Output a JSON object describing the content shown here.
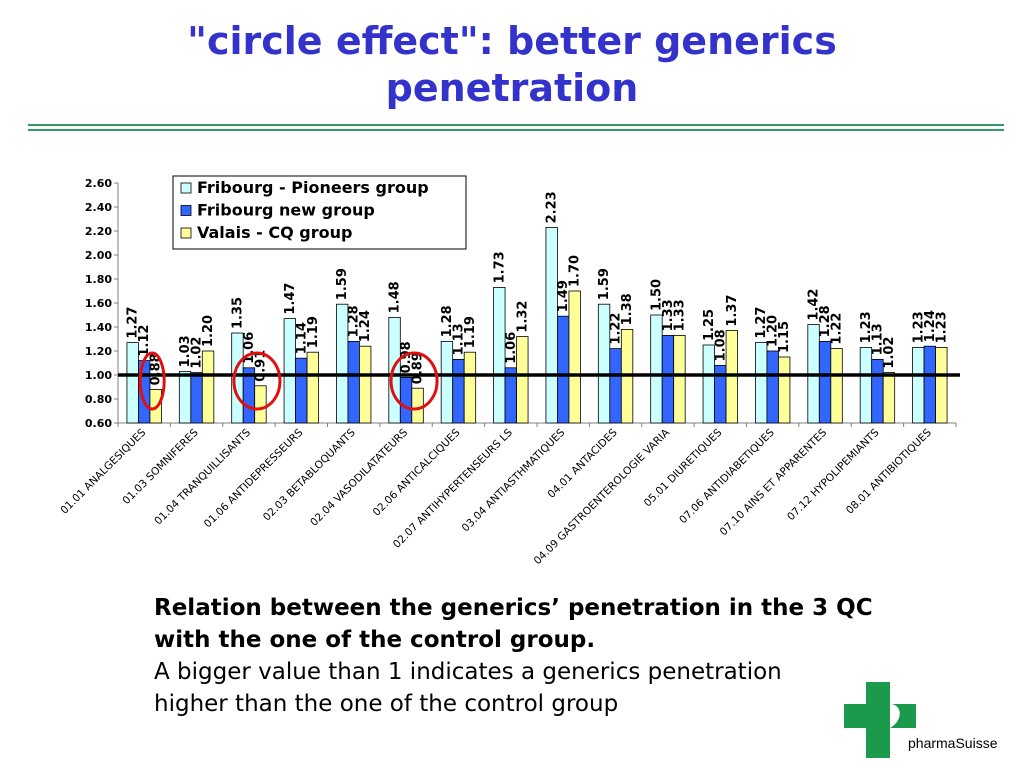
{
  "slide": {
    "title_line1": "\"circle effect\": better generics",
    "title_line2": "penetration",
    "caption_bold": "Relation between the generics’ penetration in the 3 QC with the one of the control group.",
    "caption_normal": "A bigger value than 1 indicates a generics penetration higher than the one of the control group",
    "logo_text": "pharmaSuisse"
  },
  "colors": {
    "title": "#3333cc",
    "rule": "#339966",
    "series": [
      "#ccffff",
      "#3366ff",
      "#ffff99"
    ],
    "circles": "#e01010",
    "logo": "#1a9a4a"
  },
  "chart_data": {
    "type": "bar",
    "categories": [
      "01.01 ANALGESIQUES",
      "01.03 SOMNIFERES",
      "01.04 TRANQUILLISANTS",
      "01.06 ANTIDEPRESSEURS",
      "02.03 BETABLOQUANTS",
      "02.04 VASODILATATEURS",
      "02.06 ANTICALCIQUES",
      "02.07 ANTIHYPERTENSEURS LS",
      "03.04 ANTIASTHMATIQUES",
      "04.01 ANTACIDES",
      "04.09 GASTROENTEROLOGIE VARIA",
      "05.01 DIURETIQUES",
      "07.06 ANTIDIABETIQUES",
      "07.10 AINS ET APPARENTES",
      "07.12 HYPOLIPEMIANTS",
      "08.01 ANTIBIOTIQUES"
    ],
    "series": [
      {
        "name": "Fribourg - Pioneers group",
        "values": [
          1.27,
          1.03,
          1.35,
          1.47,
          1.59,
          1.48,
          1.28,
          1.73,
          2.23,
          1.59,
          1.5,
          1.25,
          1.27,
          1.42,
          1.23,
          1.23
        ]
      },
      {
        "name": "Fribourg new group",
        "values": [
          1.12,
          1.02,
          1.06,
          1.14,
          1.28,
          0.98,
          1.13,
          1.06,
          1.49,
          1.22,
          1.33,
          1.08,
          1.2,
          1.28,
          1.13,
          1.24
        ]
      },
      {
        "name": "Valais - CQ group",
        "values": [
          0.88,
          1.2,
          0.91,
          1.19,
          1.24,
          0.89,
          1.19,
          1.32,
          1.7,
          1.38,
          1.33,
          1.37,
          1.15,
          1.22,
          1.02,
          1.23
        ]
      }
    ],
    "value_labels": [
      [
        "1.27",
        "1.03",
        "1.35",
        "1.47",
        "1.59",
        "1.48",
        "1.28",
        "1.73",
        "2.23",
        "1.59",
        "1.50",
        "1.25",
        "1.27",
        "1.42",
        "1.23",
        "1.23"
      ],
      [
        "1.12",
        "1.02",
        "1.06",
        "1.14",
        "1.28",
        "0.98",
        "1.13",
        "1.06",
        "1.49",
        "1.22",
        "1.33",
        "1.08",
        "1.20",
        "1.28",
        "1.13",
        "1.24"
      ],
      [
        "0.88",
        "1.20",
        "0.91",
        "1.19",
        "1.24",
        "0.89",
        "1.19",
        "1.32",
        "1.70",
        "1.38",
        "1.33",
        "1.37",
        "1.15",
        "1.22",
        "1.02",
        "1.23"
      ]
    ],
    "yticks": [
      "2.60",
      "2.40",
      "2.20",
      "2.00",
      "1.80",
      "1.60",
      "1.40",
      "1.20",
      "1.00",
      "0.80",
      "0.60"
    ],
    "ylim": [
      0.6,
      2.6
    ],
    "reference_line": 1.0,
    "circled_categories": [
      0,
      2,
      5
    ],
    "legend_position": "top-left",
    "grid": false,
    "title": "",
    "xlabel": "",
    "ylabel": ""
  }
}
